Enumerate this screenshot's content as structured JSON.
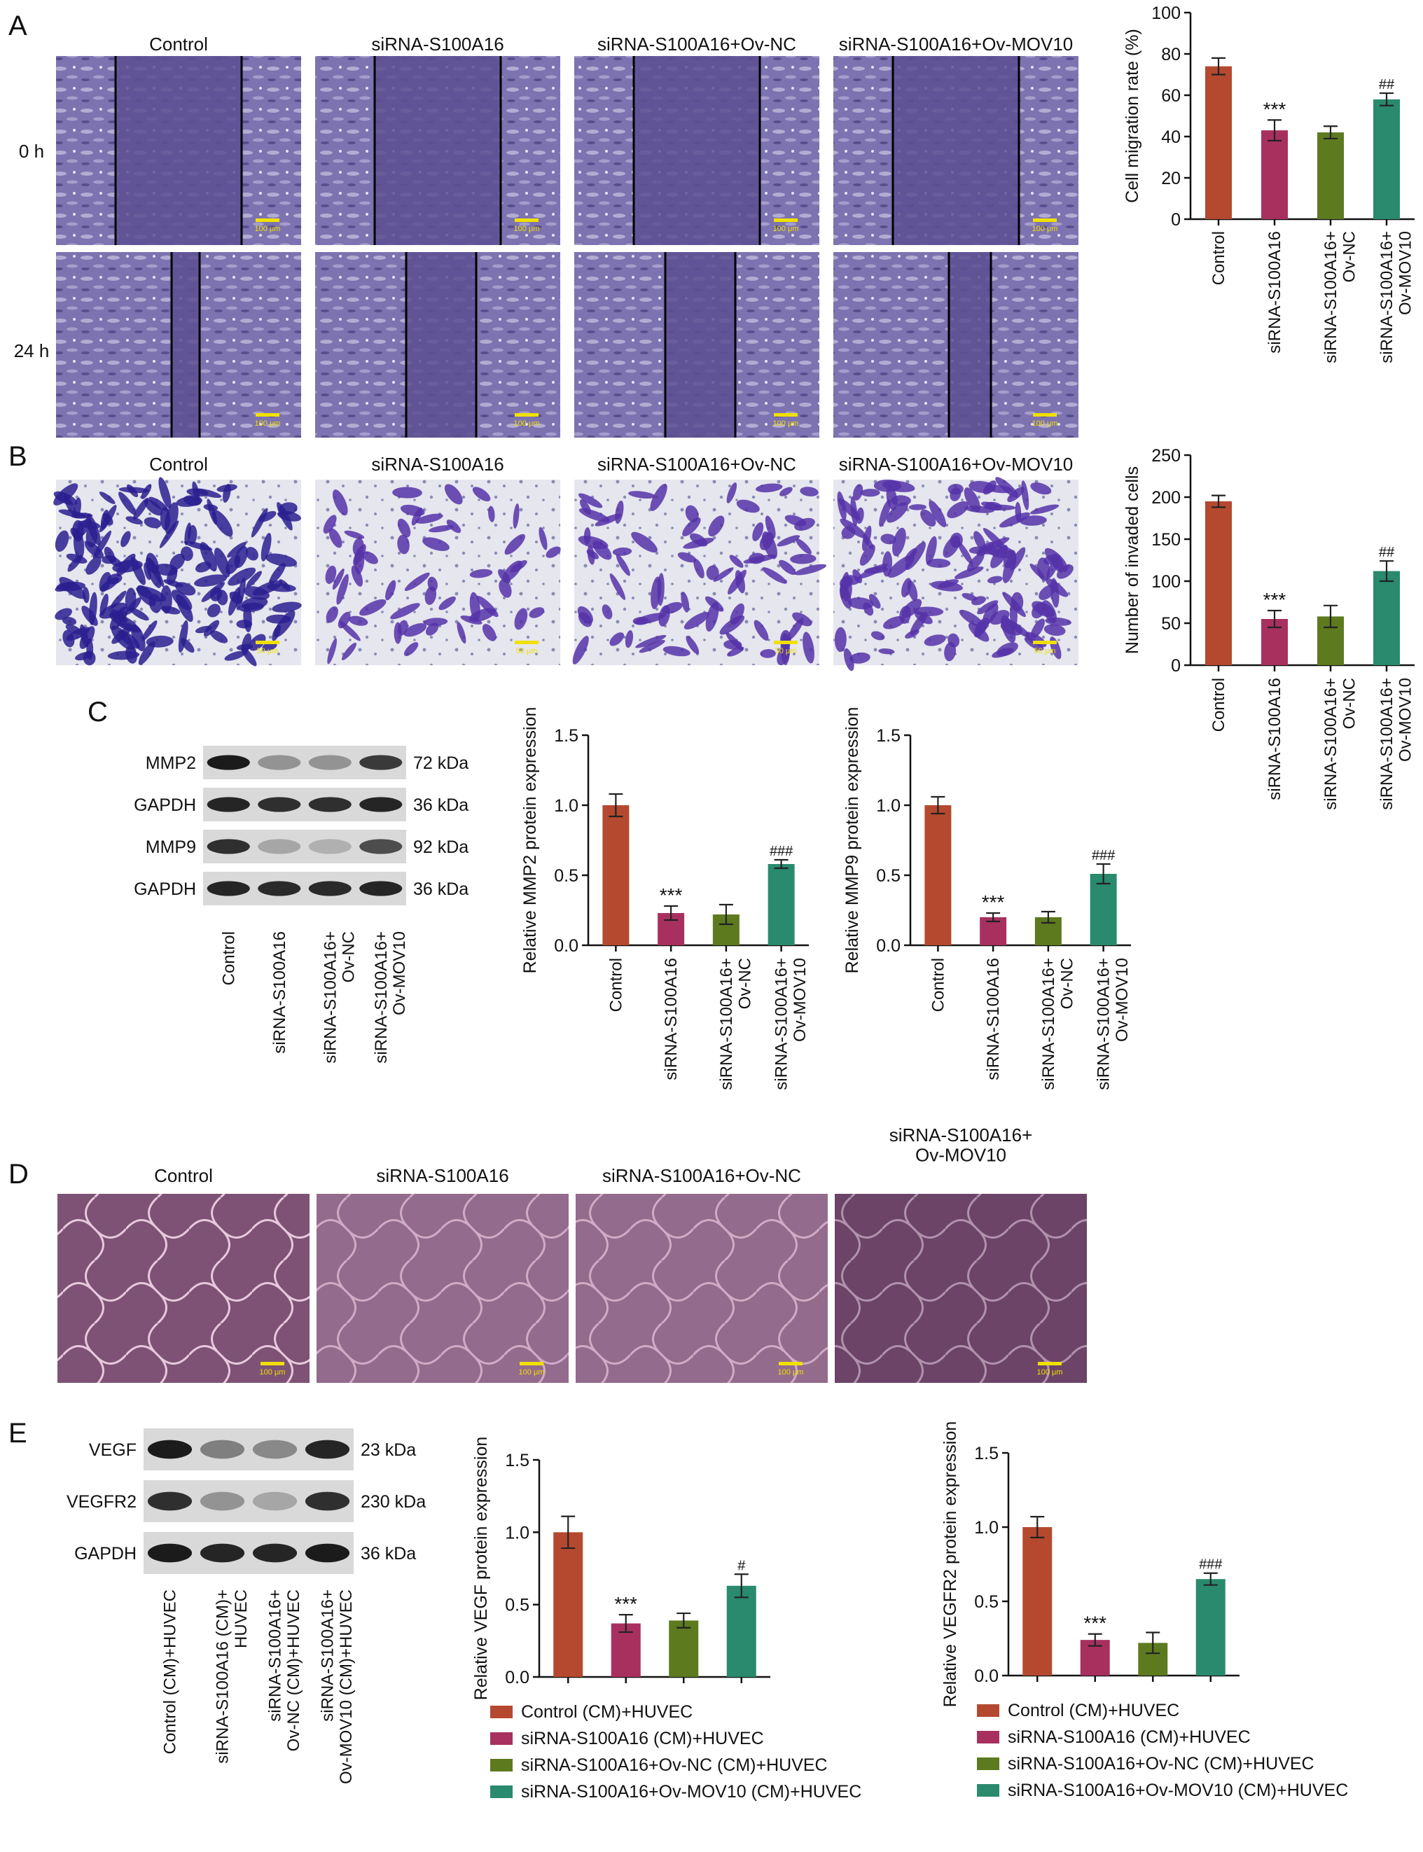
{
  "panels": {
    "A": {
      "letter": "A",
      "columns": [
        "Control",
        "siRNA-S100A16",
        "siRNA-S100A16+Ov-NC",
        "siRNA-S100A16+Ov-MOV10"
      ],
      "rows": [
        "0 h",
        "24 h"
      ],
      "scale_bar": "100 μm"
    },
    "B": {
      "letter": "B",
      "columns": [
        "Control",
        "siRNA-S100A16",
        "siRNA-S100A16+Ov-NC",
        "siRNA-S100A16+Ov-MOV10"
      ],
      "scale_bar": "50 μm"
    },
    "C": {
      "letter": "C",
      "blot_rows": [
        {
          "label": "MMP2",
          "kda": "72 kDa"
        },
        {
          "label": "GAPDH",
          "kda": "36 kDa"
        },
        {
          "label": "MMP9",
          "kda": "92 kDa"
        },
        {
          "label": "GAPDH",
          "kda": "36 kDa"
        }
      ],
      "lanes": [
        "Control",
        "siRNA-S100A16",
        "siRNA-S100A16+\nOv-NC",
        "siRNA-S100A16+\nOv-MOV10"
      ]
    },
    "D": {
      "letter": "D",
      "columns": [
        "Control",
        "siRNA-S100A16",
        "siRNA-S100A16+Ov-NC",
        "siRNA-S100A16+\nOv-MOV10"
      ],
      "scale_bar": "100 μm"
    },
    "E": {
      "letter": "E",
      "blot_rows": [
        {
          "label": "VEGF",
          "kda": "23 kDa"
        },
        {
          "label": "VEGFR2",
          "kda": "230 kDa"
        },
        {
          "label": "GAPDH",
          "kda": "36 kDa"
        }
      ],
      "lanes": [
        "Control (CM)+HUVEC",
        "siRNA-S100A16 (CM)+\nHUVEC",
        "siRNA-S100A16+\nOv-NC (CM)+HUVEC",
        "siRNA-S100A16+\nOv-MOV10 (CM)+HUVEC"
      ],
      "legend": [
        "Control (CM)+HUVEC",
        "siRNA-S100A16 (CM)+HUVEC",
        "siRNA-S100A16+Ov-NC (CM)+HUVEC",
        "siRNA-S100A16+Ov-MOV10 (CM)+HUVEC"
      ]
    }
  },
  "colors": {
    "control": "#b5492f",
    "sirna": "#a8305f",
    "ov_nc": "#5d7a1f",
    "ov_mov10": "#2a8a6e",
    "micrograph_purple": "#6a5aa0",
    "transwell_blue": "#3c2d9c",
    "tube_bg": "#7a4f73",
    "scale_bar": "#f0e000"
  },
  "chart_data": [
    {
      "id": "migration",
      "type": "bar",
      "ylabel": "Cell migration rate (%)",
      "ylim": [
        0,
        100
      ],
      "yticks": [
        0,
        20,
        40,
        60,
        80,
        100
      ],
      "categories": [
        "Control",
        "siRNA-S100A16",
        "siRNA-S100A16+\nOv-NC",
        "siRNA-S100A16+\nOv-MOV10"
      ],
      "values": [
        74,
        43,
        42,
        58
      ],
      "errors": [
        4,
        5,
        3,
        3
      ],
      "annotations": [
        "",
        "***",
        "",
        "##"
      ]
    },
    {
      "id": "invasion",
      "type": "bar",
      "ylabel": "Number of invaded cells",
      "ylim": [
        0,
        250
      ],
      "yticks": [
        0,
        50,
        100,
        150,
        200,
        250
      ],
      "categories": [
        "Control",
        "siRNA-S100A16",
        "siRNA-S100A16+\nOv-NC",
        "siRNA-S100A16+\nOv-MOV10"
      ],
      "values": [
        195,
        55,
        58,
        112
      ],
      "errors": [
        7,
        10,
        13,
        12
      ],
      "annotations": [
        "",
        "***",
        "",
        "##"
      ]
    },
    {
      "id": "mmp2",
      "type": "bar",
      "ylabel": "Relative MMP2 protein expression",
      "ylim": [
        0,
        1.5
      ],
      "yticks": [
        "0.0",
        "0.5",
        "1.0",
        "1.5"
      ],
      "categories": [
        "Control",
        "siRNA-S100A16",
        "siRNA-S100A16+\nOv-NC",
        "siRNA-S100A16+\nOv-MOV10"
      ],
      "values": [
        1.0,
        0.23,
        0.22,
        0.58
      ],
      "errors": [
        0.08,
        0.05,
        0.07,
        0.03
      ],
      "annotations": [
        "",
        "***",
        "",
        "###"
      ]
    },
    {
      "id": "mmp9",
      "type": "bar",
      "ylabel": "Relative MMP9 protein expression",
      "ylim": [
        0,
        1.5
      ],
      "yticks": [
        "0.0",
        "0.5",
        "1.0",
        "1.5"
      ],
      "categories": [
        "Control",
        "siRNA-S100A16",
        "siRNA-S100A16+\nOv-NC",
        "siRNA-S100A16+\nOv-MOV10"
      ],
      "values": [
        1.0,
        0.2,
        0.2,
        0.51
      ],
      "errors": [
        0.06,
        0.03,
        0.04,
        0.07
      ],
      "annotations": [
        "",
        "***",
        "",
        "###"
      ]
    },
    {
      "id": "vegf",
      "type": "bar",
      "ylabel": "Relative VEGF protein expression",
      "ylim": [
        0,
        1.5
      ],
      "yticks": [
        "0.0",
        "0.5",
        "1.0",
        "1.5"
      ],
      "categories": [
        "Control (CM)+HUVEC",
        "siRNA-S100A16 (CM)+HUVEC",
        "siRNA-S100A16+Ov-NC (CM)+HUVEC",
        "siRNA-S100A16+Ov-MOV10 (CM)+HUVEC"
      ],
      "values": [
        1.0,
        0.37,
        0.39,
        0.63
      ],
      "errors": [
        0.11,
        0.06,
        0.05,
        0.08
      ],
      "annotations": [
        "",
        "***",
        "",
        "#"
      ]
    },
    {
      "id": "vegfr2",
      "type": "bar",
      "ylabel": "Relative VEGFR2 protein expression",
      "ylim": [
        0,
        1.5
      ],
      "yticks": [
        "0.0",
        "0.5",
        "1.0",
        "1.5"
      ],
      "categories": [
        "Control (CM)+HUVEC",
        "siRNA-S100A16 (CM)+HUVEC",
        "siRNA-S100A16+Ov-NC (CM)+HUVEC",
        "siRNA-S100A16+Ov-MOV10 (CM)+HUVEC"
      ],
      "values": [
        1.0,
        0.24,
        0.22,
        0.65
      ],
      "errors": [
        0.07,
        0.04,
        0.07,
        0.04
      ],
      "annotations": [
        "",
        "***",
        "",
        "###"
      ]
    }
  ]
}
